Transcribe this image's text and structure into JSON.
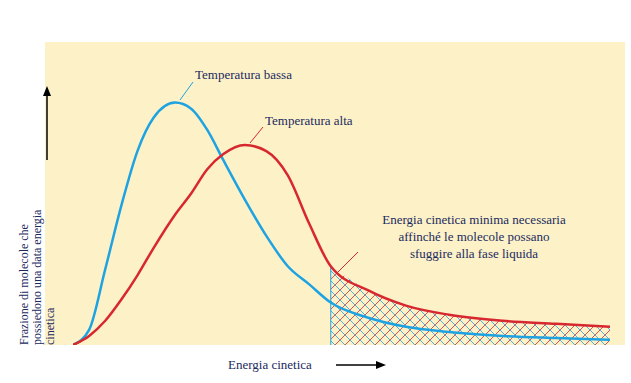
{
  "chart_data": {
    "type": "line",
    "x": [
      0,
      3,
      6,
      9,
      12,
      15,
      19,
      22,
      25,
      28,
      32,
      36,
      40,
      44,
      48,
      55,
      62,
      70,
      80,
      90,
      100
    ],
    "series": [
      {
        "name": "Temperatura bassa",
        "color": "#1ea3e2",
        "values": [
          0,
          5,
          25,
          46,
          64,
          75,
          80,
          78,
          71,
          61,
          48,
          36,
          26,
          20,
          14,
          9,
          6,
          4.3,
          3,
          2.3,
          1.7
        ]
      },
      {
        "name": "Temperatura alta",
        "color": "#d7282f",
        "values": [
          0,
          3,
          8,
          15,
          23,
          32,
          43,
          50,
          58,
          63,
          66,
          64,
          56,
          40,
          26,
          18,
          13,
          10,
          8,
          7,
          6
        ]
      }
    ],
    "x_label": "Energia cinetica",
    "y_label": [
      "Frazione di molecole che",
      "possiedono una data energia",
      "cinetica"
    ],
    "annotation": {
      "text": [
        "Energia cinetica minima necessaria",
        "affinché le molecole possano",
        "sfuggire alla fase liquida"
      ],
      "x": 48
    },
    "xlim": [
      0,
      100
    ],
    "ylim": [
      0,
      100
    ],
    "tick_labels": false,
    "grid": false
  }
}
